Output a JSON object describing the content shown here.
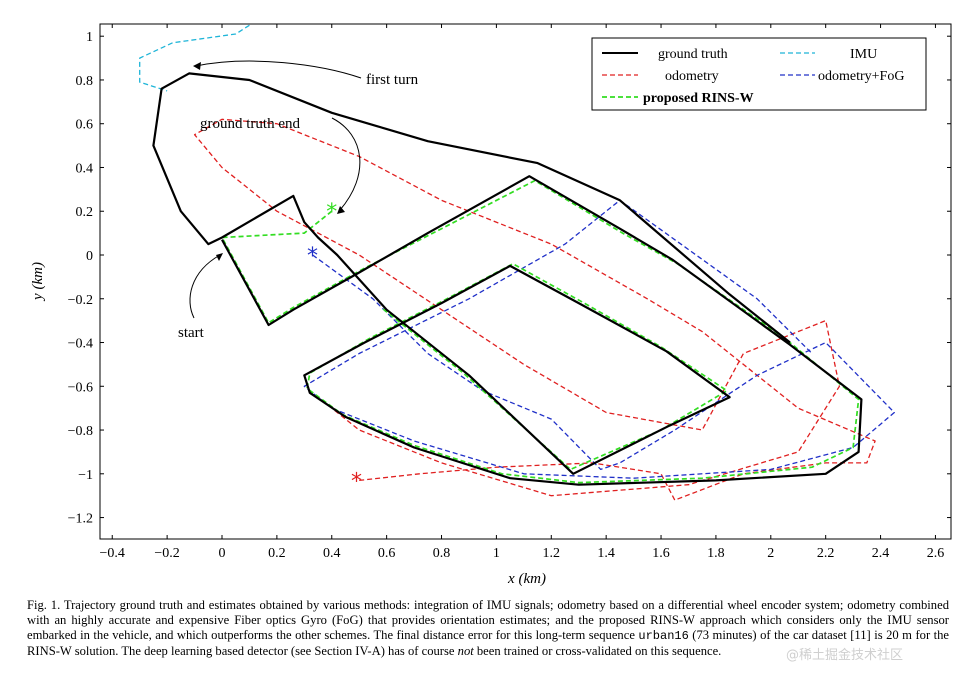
{
  "chart_data": {
    "type": "line",
    "xlabel": "x (km)",
    "ylabel": "y (km)",
    "xlim": [
      -0.5,
      2.65
    ],
    "ylim": [
      -1.3,
      1.05
    ],
    "xticks": [
      "−0.4",
      "−0.2",
      "0",
      "0.2",
      "0.4",
      "0.6",
      "0.8",
      "1",
      "1.2",
      "1.4",
      "1.6",
      "1.8",
      "2",
      "2.2",
      "2.4",
      "2.6"
    ],
    "yticks": [
      "1",
      "0.8",
      "0.6",
      "0.4",
      "0.2",
      "0",
      "−0.2",
      "−0.4",
      "−0.6",
      "−0.8",
      "−1",
      "−1.2"
    ],
    "legend_position": "top-right",
    "annotations": {
      "first_turn": "first turn",
      "ground_truth_end": "ground truth end",
      "start": "start"
    },
    "series": [
      {
        "name": "ground truth",
        "color": "#000000",
        "dash": "solid",
        "points": [
          [
            0,
            0.07
          ],
          [
            0.17,
            -0.32
          ],
          [
            0.26,
            -0.25
          ],
          [
            0.5,
            -0.08
          ],
          [
            0.75,
            0.1
          ],
          [
            1.12,
            0.36
          ],
          [
            1.45,
            0.12
          ],
          [
            1.64,
            -0.02
          ],
          [
            2.07,
            -0.41
          ],
          [
            2.33,
            -0.66
          ],
          [
            2.32,
            -0.9
          ],
          [
            2.2,
            -1
          ],
          [
            1.8,
            -1.03
          ],
          [
            1.3,
            -1.05
          ],
          [
            1.05,
            -1.02
          ],
          [
            0.7,
            -0.88
          ],
          [
            0.45,
            -0.74
          ],
          [
            0.32,
            -0.63
          ],
          [
            0.3,
            -0.55
          ],
          [
            0.52,
            -0.4
          ],
          [
            0.8,
            -0.22
          ],
          [
            1.05,
            -0.05
          ],
          [
            1.3,
            -0.22
          ],
          [
            1.62,
            -0.44
          ],
          [
            1.85,
            -0.65
          ],
          [
            1.63,
            -0.78
          ],
          [
            1.28,
            -1.0
          ],
          [
            0.9,
            -0.55
          ],
          [
            0.6,
            -0.25
          ],
          [
            0.42,
            0
          ],
          [
            0.35,
            0.08
          ],
          [
            0.3,
            0.15
          ],
          [
            0.26,
            0.27
          ],
          [
            0,
            0.08
          ],
          [
            -0.05,
            0.05
          ],
          [
            -0.15,
            0.2
          ],
          [
            -0.25,
            0.5
          ],
          [
            -0.22,
            0.76
          ],
          [
            -0.12,
            0.83
          ],
          [
            0.1,
            0.8
          ],
          [
            0.4,
            0.65
          ],
          [
            0.75,
            0.52
          ],
          [
            1.15,
            0.42
          ],
          [
            1.45,
            0.25
          ],
          [
            1.85,
            -0.18
          ],
          [
            2.07,
            -0.4
          ]
        ]
      },
      {
        "name": "IMU",
        "color": "#1fb5d8",
        "dash": "dashed",
        "points": [
          [
            0.1,
            1.05
          ],
          [
            0.05,
            1.01
          ],
          [
            -0.18,
            0.97
          ],
          [
            -0.3,
            0.9
          ],
          [
            -0.3,
            0.79
          ],
          [
            -0.2,
            0.75
          ]
        ]
      },
      {
        "name": "odometry",
        "color": "#e02020",
        "dash": "dashed",
        "points": [
          [
            0.5,
            -1.03
          ],
          [
            0.72,
            -1.0
          ],
          [
            1.0,
            -0.97
          ],
          [
            1.35,
            -0.95
          ],
          [
            1.6,
            -1.0
          ],
          [
            1.65,
            -1.12
          ],
          [
            1.9,
            -1.0
          ],
          [
            2.2,
            -0.95
          ],
          [
            2.35,
            -0.95
          ],
          [
            2.38,
            -0.85
          ],
          [
            2.1,
            -0.7
          ],
          [
            1.9,
            -0.5
          ],
          [
            1.75,
            -0.35
          ],
          [
            1.55,
            -0.2
          ],
          [
            1.2,
            0.05
          ],
          [
            0.8,
            0.25
          ],
          [
            0.5,
            0.45
          ],
          [
            0.3,
            0.55
          ],
          [
            0.2,
            0.6
          ],
          [
            0.0,
            0.62
          ],
          [
            -0.1,
            0.55
          ],
          [
            0.0,
            0.4
          ],
          [
            0.2,
            0.2
          ],
          [
            0.5,
            0
          ],
          [
            0.8,
            -0.25
          ],
          [
            1.1,
            -0.5
          ],
          [
            1.4,
            -0.72
          ],
          [
            1.75,
            -0.8
          ],
          [
            1.9,
            -0.45
          ],
          [
            2.2,
            -0.3
          ],
          [
            2.25,
            -0.6
          ],
          [
            2.1,
            -0.9
          ],
          [
            1.7,
            -1.05
          ],
          [
            1.2,
            -1.1
          ],
          [
            0.8,
            -0.95
          ],
          [
            0.5,
            -0.8
          ],
          [
            0.4,
            -0.7
          ]
        ]
      },
      {
        "name": "odometry+FoG",
        "color": "#2030c8",
        "dash": "dashed",
        "points": [
          [
            0.33,
            0
          ],
          [
            0.55,
            -0.2
          ],
          [
            0.75,
            -0.45
          ],
          [
            0.95,
            -0.62
          ],
          [
            1.2,
            -0.75
          ],
          [
            1.38,
            -0.98
          ],
          [
            1.45,
            -0.95
          ],
          [
            1.65,
            -0.8
          ],
          [
            1.95,
            -0.55
          ],
          [
            2.2,
            -0.4
          ],
          [
            2.45,
            -0.72
          ],
          [
            2.3,
            -0.88
          ],
          [
            2.0,
            -0.98
          ],
          [
            1.5,
            -1.02
          ],
          [
            1.1,
            -1.0
          ],
          [
            0.7,
            -0.85
          ],
          [
            0.4,
            -0.7
          ],
          [
            0.3,
            -0.6
          ],
          [
            0.5,
            -0.45
          ],
          [
            0.9,
            -0.2
          ],
          [
            1.25,
            0.05
          ],
          [
            1.45,
            0.25
          ],
          [
            1.95,
            -0.2
          ],
          [
            2.15,
            -0.45
          ]
        ]
      },
      {
        "name": "proposed RINS-W",
        "color": "#33dd22",
        "dash": "dashed",
        "points": [
          [
            0.4,
            0.2
          ],
          [
            0.3,
            0.1
          ],
          [
            0.0,
            0.08
          ],
          [
            0.17,
            -0.31
          ],
          [
            0.26,
            -0.24
          ],
          [
            0.52,
            -0.06
          ],
          [
            0.8,
            0.12
          ],
          [
            1.14,
            0.34
          ],
          [
            1.46,
            0.1
          ],
          [
            1.66,
            -0.04
          ],
          [
            2.05,
            -0.38
          ],
          [
            2.32,
            -0.66
          ],
          [
            2.3,
            -0.88
          ],
          [
            2.15,
            -0.97
          ],
          [
            1.75,
            -1.02
          ],
          [
            1.3,
            -1.04
          ],
          [
            1.02,
            -1.0
          ],
          [
            0.7,
            -0.87
          ],
          [
            0.44,
            -0.73
          ],
          [
            0.31,
            -0.61
          ],
          [
            0.32,
            -0.54
          ],
          [
            0.54,
            -0.38
          ],
          [
            0.82,
            -0.2
          ],
          [
            1.06,
            -0.04
          ],
          [
            1.32,
            -0.22
          ],
          [
            1.6,
            -0.42
          ],
          [
            1.84,
            -0.62
          ],
          [
            1.6,
            -0.8
          ],
          [
            1.27,
            -0.98
          ],
          [
            0.88,
            -0.54
          ],
          [
            0.58,
            -0.24
          ]
        ]
      }
    ],
    "markers": [
      {
        "series": "proposed RINS-W",
        "x": 0.4,
        "y": 0.2,
        "color": "#33dd22"
      },
      {
        "series": "odometry+FoG",
        "x": 0.33,
        "y": 0.0,
        "color": "#2030c8"
      },
      {
        "series": "odometry",
        "x": 0.49,
        "y": -1.03,
        "color": "#e02020"
      }
    ]
  },
  "caption": {
    "part1": "Fig. 1.  Trajectory ground truth and estimates obtained by various methods: integration of IMU signals; odometry based on a differential wheel encoder system; odometry combined with an highly accurate and expensive Fiber optics Gyro (FoG) that provides orientation estimates; and the proposed RINS-W approach which considers only the IMU sensor embarked in the vehicle, and which outperforms the other schemes. The final distance error for this long-term sequence ",
    "mono": "urban16",
    "part2": " (73 minutes) of the car dataset [11] is 20 m for the RINS-W solution. The deep learning based detector (see Section IV-A) has of course ",
    "italic": "not",
    "part3": " been trained or cross-validated on this sequence."
  },
  "watermark": "@稀土掘金技术社区"
}
